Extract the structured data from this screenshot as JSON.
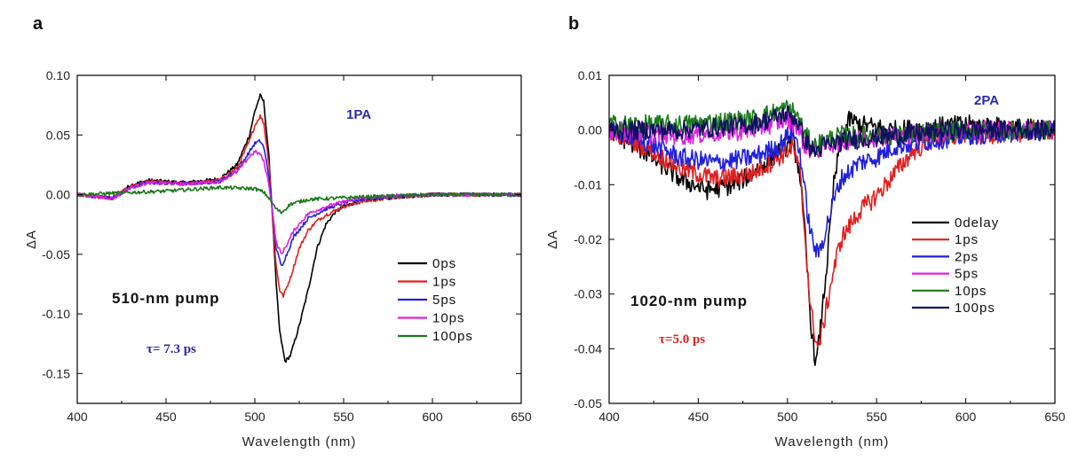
{
  "chart_data": [
    {
      "panel_label": "a",
      "type": "line",
      "xlabel": "Wavelength (nm)",
      "ylabel": "ΔA",
      "xlim": [
        400,
        650
      ],
      "ylim": [
        -0.175,
        0.1
      ],
      "xticks": [
        400,
        450,
        500,
        550,
        600,
        650
      ],
      "yticks": [
        -0.15,
        -0.1,
        -0.05,
        0.0,
        0.05,
        0.1
      ],
      "xtick_labels": [
        "400",
        "450",
        "500",
        "550",
        "600",
        "650"
      ],
      "ytick_labels": [
        "-0.15",
        "-0.10",
        "-0.05",
        "0.00",
        "0.05",
        "0.10"
      ],
      "legend_position": "lower-right",
      "noise": 0.0015,
      "annotations": {
        "tag": "1PA",
        "pump": "510-nm pump",
        "tau": "τ= 7.3 ps",
        "tau_color": "#2a2aa8"
      },
      "series": [
        {
          "name": "0ps",
          "color": "#000000",
          "x": [
            400,
            420,
            430,
            440,
            460,
            480,
            490,
            497,
            500,
            503,
            505,
            508,
            510,
            512,
            514,
            517,
            520,
            525,
            530,
            535,
            540,
            545,
            550,
            560,
            580,
            600,
            650
          ],
          "y": [
            0.0,
            -0.003,
            0.008,
            0.012,
            0.01,
            0.013,
            0.025,
            0.05,
            0.07,
            0.083,
            0.078,
            0.03,
            -0.02,
            -0.075,
            -0.115,
            -0.14,
            -0.135,
            -0.11,
            -0.08,
            -0.045,
            -0.025,
            -0.015,
            -0.01,
            -0.005,
            -0.002,
            0.0,
            0.0
          ]
        },
        {
          "name": "1ps",
          "color": "#e02020",
          "x": [
            400,
            420,
            430,
            440,
            460,
            480,
            490,
            497,
            500,
            503,
            505,
            508,
            510,
            512,
            514,
            516,
            520,
            525,
            530,
            535,
            540,
            550,
            560,
            580,
            600,
            650
          ],
          "y": [
            0.0,
            -0.003,
            0.007,
            0.011,
            0.009,
            0.012,
            0.022,
            0.045,
            0.058,
            0.066,
            0.06,
            0.025,
            -0.02,
            -0.06,
            -0.08,
            -0.085,
            -0.07,
            -0.045,
            -0.03,
            -0.022,
            -0.017,
            -0.01,
            -0.006,
            -0.002,
            0.0,
            0.0
          ]
        },
        {
          "name": "5ps",
          "color": "#2020e0",
          "x": [
            400,
            420,
            430,
            440,
            460,
            480,
            490,
            497,
            500,
            503,
            505,
            508,
            510,
            512,
            515,
            518,
            522,
            530,
            540,
            550,
            560,
            580,
            600,
            650
          ],
          "y": [
            0.0,
            -0.003,
            0.006,
            0.01,
            0.009,
            0.011,
            0.02,
            0.036,
            0.043,
            0.045,
            0.04,
            0.015,
            -0.015,
            -0.045,
            -0.06,
            -0.05,
            -0.035,
            -0.02,
            -0.012,
            -0.007,
            -0.004,
            -0.001,
            0.0,
            0.0
          ]
        },
        {
          "name": "10ps",
          "color": "#e020e0",
          "x": [
            400,
            420,
            430,
            440,
            460,
            480,
            490,
            497,
            500,
            503,
            505,
            508,
            510,
            512,
            515,
            518,
            522,
            530,
            540,
            550,
            560,
            580,
            600,
            650
          ],
          "y": [
            0.0,
            -0.003,
            0.006,
            0.01,
            0.009,
            0.011,
            0.019,
            0.032,
            0.036,
            0.034,
            0.028,
            0.008,
            -0.015,
            -0.04,
            -0.05,
            -0.042,
            -0.03,
            -0.016,
            -0.01,
            -0.006,
            -0.003,
            -0.001,
            0.0,
            0.0
          ]
        },
        {
          "name": "100ps",
          "color": "#1a7a1a",
          "x": [
            400,
            450,
            480,
            500,
            505,
            508,
            512,
            515,
            520,
            530,
            560,
            600,
            650
          ],
          "y": [
            0.0,
            0.003,
            0.006,
            0.005,
            0.002,
            -0.003,
            -0.012,
            -0.015,
            -0.008,
            -0.004,
            -0.002,
            0.0,
            0.0
          ]
        }
      ]
    },
    {
      "panel_label": "b",
      "type": "line",
      "xlabel": "Wavelength (nm)",
      "ylabel": "ΔA",
      "xlim": [
        400,
        650
      ],
      "ylim": [
        -0.05,
        0.01
      ],
      "xticks": [
        400,
        450,
        500,
        550,
        600,
        650
      ],
      "yticks": [
        -0.05,
        -0.04,
        -0.03,
        -0.02,
        -0.01,
        0.0,
        0.01
      ],
      "xtick_labels": [
        "400",
        "450",
        "500",
        "550",
        "600",
        "650"
      ],
      "ytick_labels": [
        "-0.05",
        "-0.04",
        "-0.03",
        "-0.02",
        "-0.01",
        "0.00",
        "0.01"
      ],
      "legend_position": "center-right",
      "noise": 0.0018,
      "annotations": {
        "tag": "2PA",
        "pump": "1020-nm pump",
        "tau": "τ=5.0 ps",
        "tau_color": "#e02020"
      },
      "series": [
        {
          "name": "0delay",
          "color": "#000000",
          "x": [
            400,
            420,
            440,
            455,
            470,
            480,
            495,
            503,
            507,
            510,
            513,
            516,
            518,
            522,
            526,
            530,
            535,
            540,
            560,
            600,
            650
          ],
          "y": [
            0.0,
            -0.004,
            -0.009,
            -0.011,
            -0.01,
            -0.008,
            -0.004,
            -0.002,
            -0.008,
            -0.02,
            -0.035,
            -0.043,
            -0.038,
            -0.025,
            -0.01,
            -0.002,
            0.002,
            0.001,
            0.0,
            0.001,
            0.0
          ]
        },
        {
          "name": "1ps",
          "color": "#e02020",
          "x": [
            400,
            420,
            440,
            460,
            480,
            495,
            503,
            507,
            510,
            513,
            517,
            520,
            525,
            530,
            540,
            550,
            560,
            570,
            580,
            600,
            650
          ],
          "y": [
            0.0,
            -0.003,
            -0.007,
            -0.009,
            -0.008,
            -0.005,
            -0.003,
            -0.008,
            -0.02,
            -0.033,
            -0.04,
            -0.036,
            -0.027,
            -0.02,
            -0.015,
            -0.012,
            -0.008,
            -0.004,
            -0.002,
            -0.001,
            0.0
          ]
        },
        {
          "name": "2ps",
          "color": "#2020e0",
          "x": [
            400,
            420,
            440,
            460,
            480,
            495,
            503,
            507,
            510,
            513,
            517,
            520,
            525,
            530,
            540,
            550,
            560,
            580,
            600,
            650
          ],
          "y": [
            0.0,
            -0.002,
            -0.005,
            -0.006,
            -0.005,
            -0.003,
            0.0,
            -0.004,
            -0.012,
            -0.019,
            -0.023,
            -0.02,
            -0.014,
            -0.009,
            -0.006,
            -0.005,
            -0.003,
            -0.002,
            -0.001,
            0.0
          ]
        },
        {
          "name": "5ps",
          "color": "#e020e0",
          "x": [
            400,
            440,
            480,
            500,
            505,
            510,
            515,
            520,
            530,
            560,
            600,
            650
          ],
          "y": [
            0.0,
            -0.001,
            0.0,
            0.002,
            0.001,
            -0.003,
            -0.004,
            -0.003,
            -0.002,
            -0.001,
            0.0,
            0.0
          ]
        },
        {
          "name": "10ps",
          "color": "#1a7a1a",
          "x": [
            400,
            440,
            480,
            500,
            505,
            510,
            515,
            520,
            530,
            560,
            600,
            650
          ],
          "y": [
            0.001,
            0.001,
            0.002,
            0.004,
            0.003,
            -0.001,
            -0.003,
            -0.002,
            -0.001,
            -0.001,
            0.0,
            0.0
          ]
        },
        {
          "name": "100ps",
          "color": "#101060",
          "x": [
            400,
            440,
            480,
            500,
            505,
            510,
            515,
            520,
            530,
            560,
            600,
            650
          ],
          "y": [
            0.0,
            0.0,
            0.001,
            0.003,
            0.002,
            -0.002,
            -0.004,
            -0.003,
            -0.002,
            -0.001,
            0.0,
            0.0
          ]
        }
      ]
    }
  ]
}
